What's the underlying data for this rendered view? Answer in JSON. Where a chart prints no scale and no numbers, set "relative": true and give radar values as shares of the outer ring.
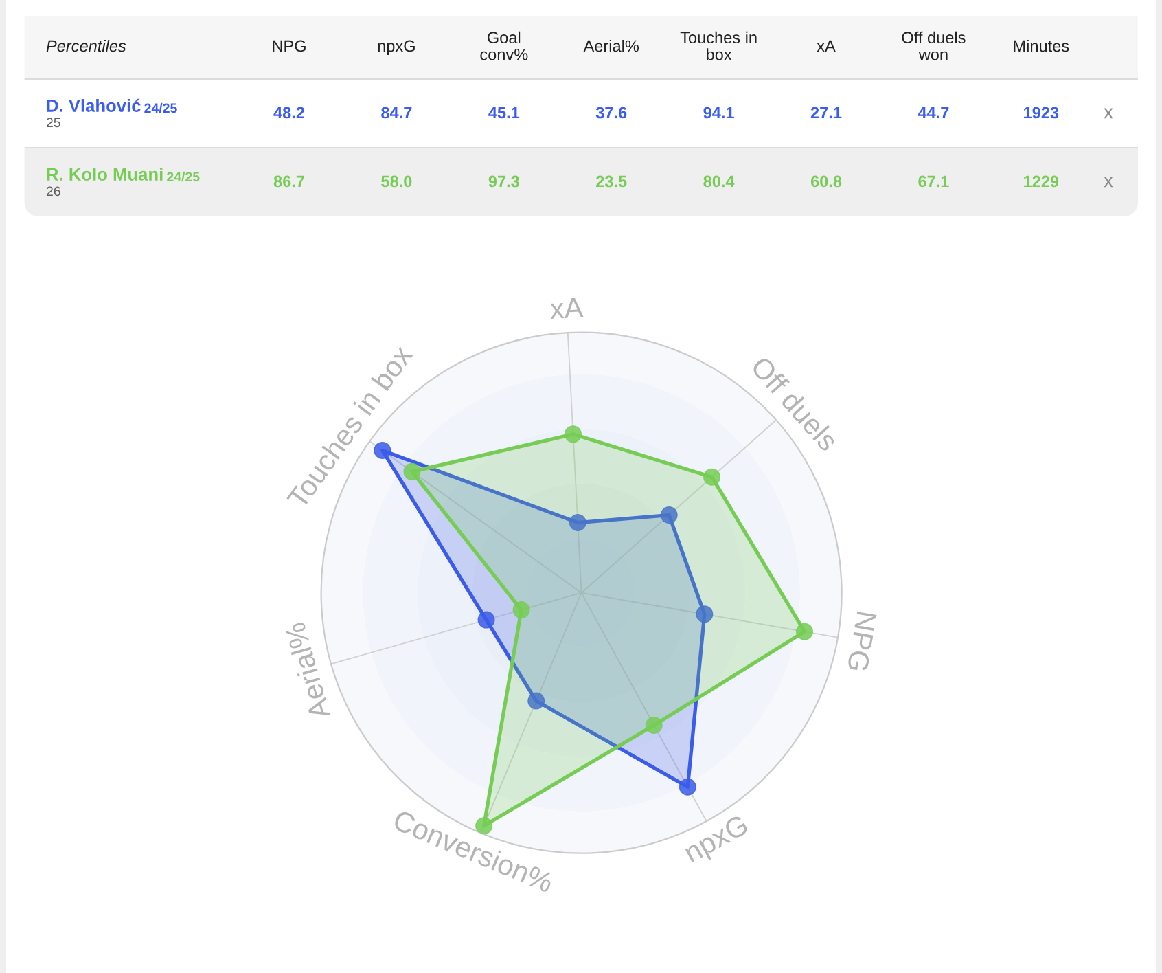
{
  "chart_data": [
    {
      "type": "other",
      "title": "Percentiles",
      "categories": [
        "NPG",
        "npxG",
        "Goal conv%",
        "Aerial%",
        "Touches in box",
        "xA",
        "Off duels won",
        "Minutes"
      ],
      "series": [
        {
          "name": "D. Vlahović",
          "color": "#3b5cf0",
          "values": [
            48.2,
            84.7,
            45.1,
            37.6,
            94.1,
            27.1,
            44.7,
            1923
          ],
          "value_labels": [
            "48.2",
            "84.7",
            "45.1",
            "37.6",
            "94.1",
            "27.1",
            "44.7",
            "1923"
          ]
        },
        {
          "name": "R. Kolo Muani",
          "color": "#76cc55",
          "values": [
            86.7,
            58.0,
            97.3,
            23.5,
            80.4,
            60.8,
            67.1,
            1229
          ],
          "value_labels": [
            "86.7",
            "58.0",
            "97.3",
            "23.5",
            "80.4",
            "60.8",
            "67.1",
            "1229"
          ]
        }
      ],
      "annotations": [
        "24/25",
        "25",
        "x",
        "24/25",
        "26",
        "x"
      ]
    },
    {
      "type": "radar",
      "categories": [
        "xA",
        "Off duels",
        "NPG",
        "npxG",
        "Conversion%",
        "Aerial%",
        "Touches in box"
      ],
      "relative": true,
      "series": [
        {
          "color": "#3b5ce8",
          "values": [
            0.27,
            0.45,
            0.48,
            0.85,
            0.45,
            0.38,
            0.94
          ]
        },
        {
          "color": "#76cc55",
          "values": [
            0.61,
            0.67,
            0.87,
            0.58,
            0.97,
            0.24,
            0.8
          ]
        }
      ],
      "marker": "circle",
      "grid": true
    }
  ]
}
